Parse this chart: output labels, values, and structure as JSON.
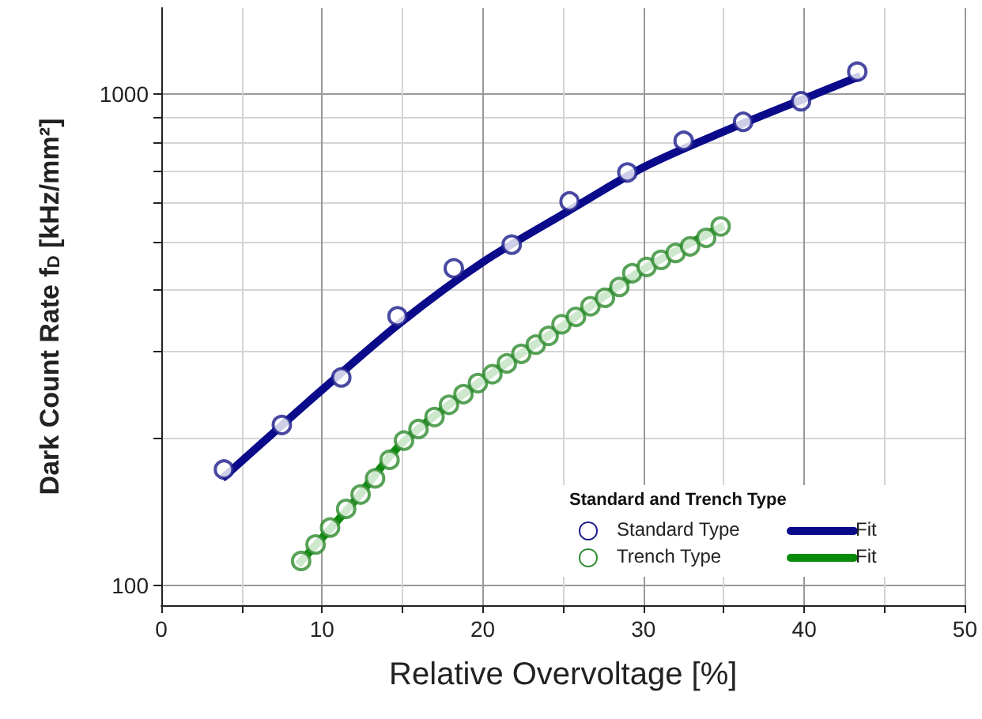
{
  "chart_data": {
    "type": "scatter",
    "xlabel": "Relative Overvoltage [%]",
    "ylabel": "Dark Count Rate f$_{D}$ [kHz/mm²]",
    "legend_title": "Standard and Trench Type",
    "legend": "bottom right",
    "log": "y",
    "grid": true,
    "marker": "circle",
    "xlim": [
      0,
      50
    ],
    "xticks": [
      0,
      {
        "value": 5,
        "label": null
      },
      10,
      {
        "value": 15,
        "label": null
      },
      20,
      {
        "value": 25,
        "label": null
      },
      30,
      {
        "value": 35,
        "label": null
      },
      40,
      {
        "value": 45,
        "label": null
      },
      50
    ],
    "ylim": [
      91,
      1500
    ],
    "yticks": [
      100,
      {
        "value": 200,
        "label": null
      },
      {
        "value": 300,
        "label": null
      },
      {
        "value": 400,
        "label": null
      },
      {
        "value": 500,
        "label": null
      },
      {
        "value": 600,
        "label": null
      },
      {
        "value": 700,
        "label": null
      },
      {
        "value": 800,
        "label": null
      },
      {
        "value": 900,
        "label": null
      },
      1000
    ],
    "series": [
      {
        "name": "Standard Type",
        "color": "#1c1c8c",
        "x": [
          3.9,
          7.5,
          11.2,
          14.7,
          18.2,
          21.8,
          25.4,
          29,
          32.5,
          36.2,
          39.8,
          43.3
        ],
        "values": [
          172,
          212,
          265,
          353,
          442,
          494,
          605,
          693,
          804,
          879,
          968,
          1112
        ]
      },
      {
        "name": "Fit",
        "type": "line",
        "color": "#0a0a8a",
        "marker": "none",
        "x": [
          3.8,
          10,
          15,
          20,
          25,
          30,
          35,
          40,
          43.5
        ],
        "values": [
          165,
          250,
          345,
          455,
          570,
          710,
          840,
          980,
          1090
        ]
      },
      {
        "name": "Trench Type",
        "color": "#2e8b2e",
        "x": [
          8.7,
          9.6,
          10.5,
          11.5,
          12.4,
          13.3,
          14.2,
          15.1,
          16.0,
          17.0,
          17.9,
          18.8,
          19.7,
          20.6,
          21.5,
          22.4,
          23.3,
          24.1,
          24.9,
          25.8,
          26.7,
          27.6,
          28.5,
          29.3,
          30.2,
          31.1,
          32.0,
          32.9,
          33.9,
          34.8
        ],
        "values": [
          112,
          121,
          131,
          143,
          153,
          165,
          180,
          197,
          208,
          220,
          233,
          245,
          258,
          269,
          283,
          296,
          309,
          322,
          340,
          352,
          370,
          385,
          405,
          432,
          445,
          460,
          475,
          490,
          510,
          538
        ]
      },
      {
        "name": "Fit",
        "type": "line",
        "color": "#0a8a0a",
        "marker": "none",
        "x": [
          8.5,
          12,
          15,
          20,
          25,
          30,
          35
        ],
        "values": [
          110,
          148,
          195,
          262,
          338,
          440,
          540
        ]
      }
    ]
  }
}
